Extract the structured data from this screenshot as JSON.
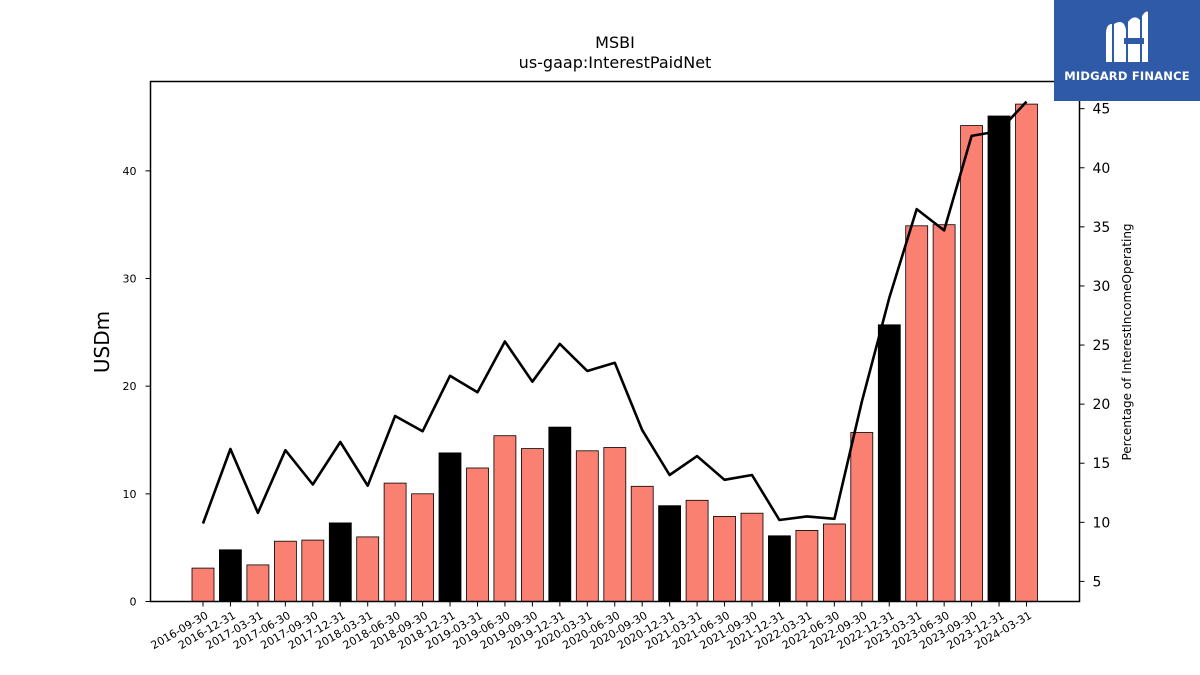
{
  "chart_data": {
    "type": "bar",
    "title": "MSBI",
    "subtitle": "us-gaap:InterestPaidNet",
    "ylabel": "USDm",
    "y2label": "Percentage of InterestIncomeOperating",
    "ylim": [
      0,
      48.3
    ],
    "y2lim": [
      3.3,
      47.3
    ],
    "yticks": [
      0,
      10,
      20,
      30,
      40
    ],
    "y2ticks": [
      5,
      10,
      15,
      20,
      25,
      30,
      35,
      40,
      45
    ],
    "grid": false,
    "categories": [
      "2016-09-30",
      "2016-12-31",
      "2017-03-31",
      "2017-06-30",
      "2017-09-30",
      "2017-12-31",
      "2018-03-31",
      "2018-06-30",
      "2018-09-30",
      "2018-12-31",
      "2019-03-31",
      "2019-06-30",
      "2019-09-30",
      "2019-12-31",
      "2020-03-31",
      "2020-06-30",
      "2020-09-30",
      "2020-12-31",
      "2021-03-31",
      "2021-06-30",
      "2021-09-30",
      "2021-12-31",
      "2022-03-31",
      "2022-06-30",
      "2022-09-30",
      "2022-12-31",
      "2023-03-31",
      "2023-06-30",
      "2023-09-30",
      "2023-12-31",
      "2024-03-31"
    ],
    "series": [
      {
        "type": "bar",
        "axis": "left",
        "values": [
          3.1,
          4.8,
          3.4,
          5.6,
          5.7,
          7.3,
          6.0,
          11.0,
          10.0,
          13.8,
          12.4,
          15.4,
          14.2,
          16.2,
          14.0,
          14.3,
          10.7,
          8.9,
          9.4,
          7.9,
          8.2,
          6.1,
          6.6,
          7.2,
          15.7,
          25.7,
          34.9,
          35.0,
          44.2,
          45.1,
          46.2
        ],
        "colors": {
          "quarter": "#fa8072",
          "year_end": "#000000"
        }
      },
      {
        "type": "line",
        "axis": "right",
        "color": "#000000",
        "values": [
          9.9,
          16.2,
          10.8,
          16.1,
          13.2,
          16.8,
          13.1,
          19.0,
          17.7,
          22.4,
          21.0,
          25.3,
          21.9,
          25.1,
          22.8,
          23.5,
          17.8,
          14.0,
          15.6,
          13.6,
          14.0,
          10.2,
          10.5,
          10.3,
          20.2,
          29.0,
          36.5,
          34.7,
          42.7,
          43.1,
          45.6
        ]
      }
    ]
  },
  "logo": {
    "text": "MIDGARD FINANCE",
    "background": "#2f5aa8"
  }
}
